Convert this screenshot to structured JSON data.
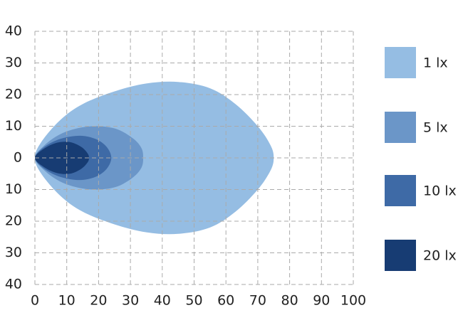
{
  "chart_data": {
    "type": "isolux",
    "xlim": [
      0,
      100
    ],
    "xticks": [
      0,
      10,
      20,
      30,
      40,
      50,
      60,
      70,
      80,
      90,
      100
    ],
    "ylim": [
      -40,
      40
    ],
    "yticks": [
      {
        "value": 40,
        "label": "40"
      },
      {
        "value": 30,
        "label": "30"
      },
      {
        "value": 20,
        "label": "20"
      },
      {
        "value": 10,
        "label": "10"
      },
      0,
      {
        "value": -10,
        "label": "10"
      },
      {
        "value": -20,
        "label": "20"
      },
      {
        "value": -30,
        "label": "30"
      },
      {
        "value": -40,
        "label": "40"
      }
    ],
    "grid": true,
    "legend": "right",
    "series": [
      {
        "name": "1 lx",
        "color": "#95bde3",
        "x": [
          0,
          2,
          8,
          15,
          25,
          35,
          45,
          55,
          63,
          70,
          74,
          75,
          74,
          70,
          63,
          55,
          45,
          35,
          25,
          15,
          8,
          2
        ],
        "values": [
          0,
          5,
          12,
          17,
          21,
          23.5,
          24,
          22,
          17,
          10,
          4,
          0,
          -4,
          -10,
          -17,
          -22,
          -24,
          -23.5,
          -21,
          -17,
          -12,
          -5
        ]
      },
      {
        "name": "5 lx",
        "color": "#6b96c8",
        "x": [
          0,
          3,
          8,
          14,
          20,
          26,
          31,
          33.5,
          34,
          33.5,
          31,
          26,
          20,
          14,
          8,
          3
        ],
        "values": [
          0,
          4,
          7.5,
          9.5,
          10,
          9,
          6,
          3,
          0,
          -3,
          -6,
          -9,
          -10,
          -9.5,
          -7.5,
          -4
        ]
      },
      {
        "name": "10 lx",
        "color": "#3e6aa6",
        "x": [
          0,
          3,
          8,
          14,
          19,
          22.5,
          24,
          22.5,
          19,
          14,
          8,
          3
        ],
        "values": [
          0,
          3.5,
          6,
          7,
          6,
          3.5,
          0,
          -3.5,
          -6,
          -7,
          -6,
          -3.5
        ]
      },
      {
        "name": "20 lx",
        "color": "#173c73",
        "x": [
          0,
          3,
          7,
          11,
          14.5,
          16.5,
          17,
          16.5,
          14.5,
          11,
          7,
          3
        ],
        "values": [
          0,
          3,
          4.8,
          5,
          3.5,
          1.5,
          0,
          -1.5,
          -3.5,
          -5,
          -4.8,
          -3
        ]
      }
    ]
  }
}
